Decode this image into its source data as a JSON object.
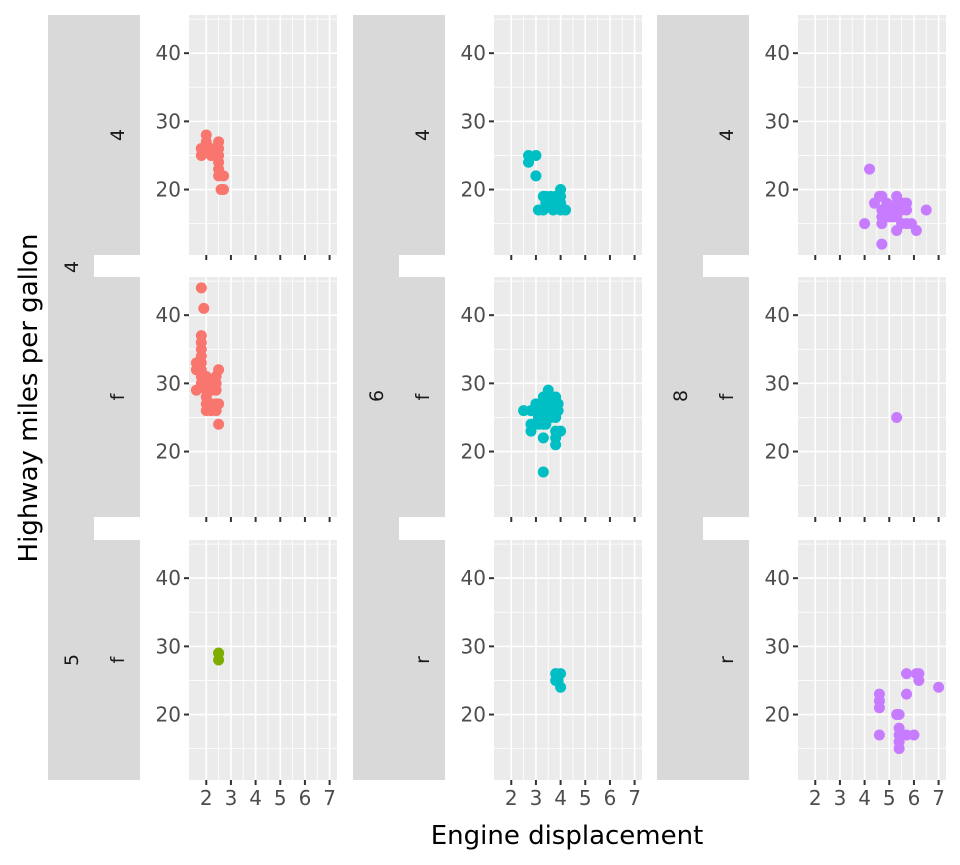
{
  "chart_data": {
    "type": "scatter",
    "xlabel": "Engine displacement",
    "ylabel": "Highway miles per gallon",
    "xlim": [
      1.3,
      7.3
    ],
    "ylim": [
      10.4,
      45.6
    ],
    "x_ticks": [
      2,
      3,
      4,
      5,
      6,
      7
    ],
    "x_tick_labels": [
      "2",
      "3",
      "4",
      "5",
      "6",
      "7"
    ],
    "y_ticks": [
      20,
      30,
      40
    ],
    "y_tick_labels": [
      "20",
      "30",
      "40"
    ],
    "color_variable_levels": [
      "4",
      "5",
      "6",
      "8"
    ],
    "colors": {
      "4": "#F8766D",
      "5": "#7CAE00",
      "6": "#00BFC4",
      "8": "#C77CFF"
    },
    "outer_strip_labels": [
      "4",
      "5",
      "6",
      "8"
    ],
    "inner_strip_labels": [
      "4",
      "f",
      "r"
    ],
    "panels": [
      {
        "col": 0,
        "row": 0,
        "cyl": "4",
        "drv": "4",
        "points": [
          [
            1.8,
            25
          ],
          [
            1.8,
            26
          ],
          [
            1.8,
            26
          ],
          [
            2.0,
            26
          ],
          [
            2.0,
            27
          ],
          [
            2.0,
            28
          ],
          [
            2.2,
            25
          ],
          [
            2.2,
            26
          ],
          [
            2.4,
            26
          ],
          [
            2.5,
            26
          ],
          [
            2.5,
            27
          ],
          [
            2.5,
            25
          ],
          [
            2.5,
            24
          ],
          [
            2.5,
            23
          ],
          [
            2.5,
            22
          ],
          [
            2.7,
            22
          ],
          [
            2.7,
            20
          ],
          [
            2.6,
            20
          ],
          [
            2.4,
            25
          ]
        ]
      },
      {
        "col": 0,
        "row": 1,
        "cyl": "4",
        "drv": "f",
        "points": [
          [
            1.8,
            44
          ],
          [
            1.9,
            41
          ],
          [
            1.8,
            37
          ],
          [
            1.8,
            36
          ],
          [
            1.8,
            35
          ],
          [
            1.8,
            34
          ],
          [
            1.8,
            33
          ],
          [
            1.6,
            33
          ],
          [
            1.6,
            32
          ],
          [
            1.8,
            32
          ],
          [
            1.8,
            31
          ],
          [
            1.9,
            30
          ],
          [
            1.8,
            30
          ],
          [
            1.6,
            29
          ],
          [
            2.0,
            29
          ],
          [
            2.0,
            28
          ],
          [
            2.0,
            27
          ],
          [
            2.0,
            26
          ],
          [
            2.2,
            26
          ],
          [
            2.2,
            27
          ],
          [
            2.2,
            29
          ],
          [
            2.2,
            30
          ],
          [
            2.4,
            31
          ],
          [
            2.5,
            32
          ],
          [
            2.4,
            30
          ],
          [
            2.4,
            29
          ],
          [
            2.4,
            27
          ],
          [
            2.4,
            26
          ],
          [
            2.5,
            24
          ],
          [
            2.5,
            27
          ],
          [
            2.0,
            31
          ],
          [
            2.1,
            30
          ]
        ]
      },
      {
        "col": 0,
        "row": 2,
        "cyl": "5",
        "drv": "f",
        "points": [
          [
            2.5,
            29
          ],
          [
            2.5,
            28
          ],
          [
            2.5,
            29
          ]
        ]
      },
      {
        "col": 1,
        "row": 0,
        "cyl": "6",
        "drv": "4",
        "points": [
          [
            2.7,
            24
          ],
          [
            2.7,
            25
          ],
          [
            3.0,
            25
          ],
          [
            3.0,
            22
          ],
          [
            3.1,
            17
          ],
          [
            3.3,
            17
          ],
          [
            3.3,
            19
          ],
          [
            3.4,
            19
          ],
          [
            3.5,
            18
          ],
          [
            3.7,
            18
          ],
          [
            3.7,
            17
          ],
          [
            3.8,
            19
          ],
          [
            4.0,
            20
          ],
          [
            4.0,
            19
          ],
          [
            4.0,
            18
          ],
          [
            4.0,
            17
          ],
          [
            4.2,
            17
          ],
          [
            3.4,
            18
          ],
          [
            3.6,
            19
          ]
        ]
      },
      {
        "col": 1,
        "row": 1,
        "cyl": "6",
        "drv": "f",
        "points": [
          [
            2.5,
            26
          ],
          [
            2.8,
            24
          ],
          [
            2.8,
            26
          ],
          [
            2.8,
            23
          ],
          [
            3.0,
            27
          ],
          [
            3.0,
            26
          ],
          [
            3.1,
            24
          ],
          [
            3.1,
            25
          ],
          [
            3.3,
            28
          ],
          [
            3.3,
            26
          ],
          [
            3.3,
            25
          ],
          [
            3.3,
            24
          ],
          [
            3.3,
            22
          ],
          [
            3.3,
            17
          ],
          [
            3.5,
            29
          ],
          [
            3.5,
            28
          ],
          [
            3.5,
            26
          ],
          [
            3.5,
            27
          ],
          [
            3.6,
            25
          ],
          [
            3.8,
            28
          ],
          [
            3.8,
            27
          ],
          [
            3.8,
            26
          ],
          [
            3.8,
            25
          ],
          [
            3.8,
            23
          ],
          [
            3.8,
            22
          ],
          [
            3.8,
            21
          ],
          [
            4.0,
            23
          ],
          [
            3.9,
            26
          ],
          [
            3.9,
            27
          ],
          [
            3.1,
            26
          ],
          [
            3.2,
            27
          ],
          [
            3.4,
            24
          ]
        ]
      },
      {
        "col": 1,
        "row": 2,
        "cyl": "6",
        "drv": "r",
        "points": [
          [
            3.8,
            26
          ],
          [
            3.8,
            25
          ],
          [
            4.0,
            26
          ],
          [
            4.0,
            24
          ],
          [
            3.9,
            25
          ]
        ]
      },
      {
        "col": 2,
        "row": 0,
        "cyl": "8",
        "drv": "4",
        "points": [
          [
            4.2,
            23
          ],
          [
            4.0,
            15
          ],
          [
            4.4,
            18
          ],
          [
            4.6,
            19
          ],
          [
            4.7,
            19
          ],
          [
            4.7,
            17
          ],
          [
            4.7,
            16
          ],
          [
            4.7,
            15
          ],
          [
            4.7,
            12
          ],
          [
            4.8,
            17
          ],
          [
            5.0,
            17
          ],
          [
            5.2,
            17
          ],
          [
            5.3,
            19
          ],
          [
            5.3,
            18
          ],
          [
            5.3,
            16
          ],
          [
            5.3,
            14
          ],
          [
            5.4,
            17
          ],
          [
            5.5,
            17
          ],
          [
            5.6,
            18
          ],
          [
            5.7,
            18
          ],
          [
            5.7,
            17
          ],
          [
            5.7,
            15
          ],
          [
            5.9,
            15
          ],
          [
            6.1,
            14
          ],
          [
            6.5,
            17
          ],
          [
            4.9,
            18
          ],
          [
            5.1,
            16
          ],
          [
            5.5,
            15
          ],
          [
            5.0,
            16
          ]
        ]
      },
      {
        "col": 2,
        "row": 1,
        "cyl": "8",
        "drv": "f",
        "points": [
          [
            5.3,
            25
          ]
        ]
      },
      {
        "col": 2,
        "row": 2,
        "cyl": "8",
        "drv": "r",
        "points": [
          [
            4.6,
            23
          ],
          [
            4.6,
            22
          ],
          [
            4.6,
            21
          ],
          [
            4.6,
            17
          ],
          [
            5.3,
            20
          ],
          [
            5.4,
            20
          ],
          [
            5.4,
            18
          ],
          [
            5.4,
            17
          ],
          [
            5.4,
            16
          ],
          [
            5.4,
            15
          ],
          [
            5.7,
            26
          ],
          [
            5.7,
            23
          ],
          [
            5.7,
            17
          ],
          [
            6.0,
            17
          ],
          [
            6.1,
            26
          ],
          [
            6.2,
            26
          ],
          [
            6.2,
            25
          ],
          [
            7.0,
            24
          ],
          [
            5.5,
            17
          ]
        ]
      }
    ]
  }
}
